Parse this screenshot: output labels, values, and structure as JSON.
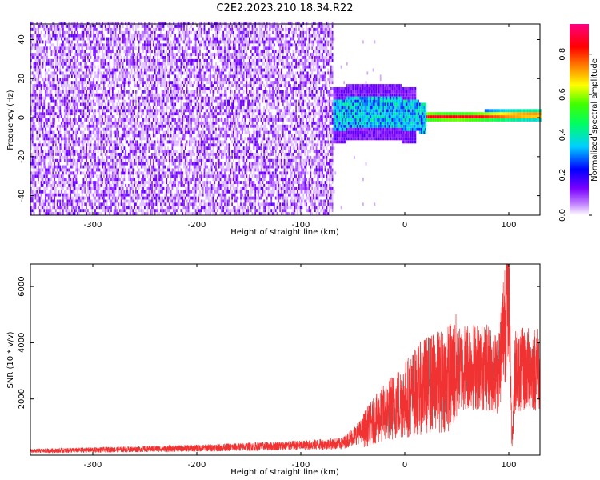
{
  "title": "C2E2.2023.210.18.34.R22",
  "colors": {
    "snr_line": "#f03232",
    "spectrogram_low": "#7a00ff",
    "frame": "#000000"
  },
  "chart_data": [
    {
      "type": "heatmap",
      "xlabel": "Height of straight line (km)",
      "ylabel": "Frequency (Hz)",
      "xlim": [
        -360,
        130
      ],
      "ylim": [
        -50,
        48
      ],
      "xticks": [
        "-300",
        "-200",
        "-100",
        "0",
        "100"
      ],
      "yticks": [
        "-40",
        "-20",
        "0",
        "20",
        "40"
      ],
      "colorbar": {
        "label": "Normalized spectral amplitude",
        "ticks": [
          "0.0",
          "0.2",
          "0.4",
          "0.6",
          "0.8"
        ],
        "range": [
          0,
          0.95
        ],
        "colormap": "rainbow (white-purple-blue-cyan-green-yellow-red-magenta)"
      },
      "description_values": {
        "noise_region_x": [
          -360,
          -70
        ],
        "signal_region_x": [
          -70,
          130
        ],
        "signal_center_hz": 0,
        "signal_peak_amplitude": 0.9
      }
    },
    {
      "type": "line",
      "xlabel": "Height of straight line (km)",
      "ylabel": "SNR (10 * v/v)",
      "xlim": [
        -360,
        130
      ],
      "ylim": [
        0,
        6800
      ],
      "xticks": [
        "-300",
        "-200",
        "-100",
        "0",
        "100"
      ],
      "yticks": [
        "2000",
        "4000",
        "6000"
      ],
      "trend": [
        {
          "x": -360,
          "y": 150
        },
        {
          "x": -200,
          "y": 250
        },
        {
          "x": -100,
          "y": 350
        },
        {
          "x": -60,
          "y": 420
        },
        {
          "x": -40,
          "y": 900
        },
        {
          "x": -20,
          "y": 1500
        },
        {
          "x": 0,
          "y": 2000
        },
        {
          "x": 20,
          "y": 2500
        },
        {
          "x": 40,
          "y": 2700
        },
        {
          "x": 50,
          "y": 3000
        },
        {
          "x": 60,
          "y": 3200
        },
        {
          "x": 80,
          "y": 3100
        },
        {
          "x": 90,
          "y": 2900
        },
        {
          "x": 97,
          "y": 5200
        },
        {
          "x": 100,
          "y": 6800
        },
        {
          "x": 103,
          "y": 400
        },
        {
          "x": 106,
          "y": 3000
        },
        {
          "x": 130,
          "y": 3100
        }
      ]
    }
  ]
}
